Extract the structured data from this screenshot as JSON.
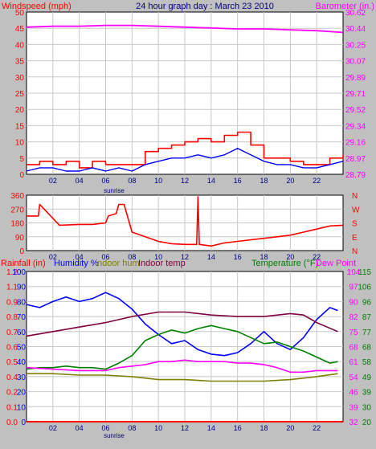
{
  "header": {
    "left_label": "Windspeed (mph)",
    "title": "24 hour graph day : March 23 2010",
    "right_label": "Barometer (in.)"
  },
  "colors": {
    "background": "#c0c0c0",
    "plot_bg": "#ffffff",
    "grid": "#c8c8c8",
    "wind": "#ff0000",
    "wind_avg": "#0000ff",
    "barometer": "#ff00ff",
    "direction": "#ff0000",
    "humidity": "#0000ff",
    "indoor_hum": "#808000",
    "indoor_temp": "#800040",
    "temperature": "#008000",
    "dew_point": "#ff00ff",
    "rain": "#ff0000",
    "tick_text": "#000080"
  },
  "bottom_labels": {
    "rain": "Rainfall (in)",
    "humidity": "Humidity %",
    "indoor_hum": "Indoor hum",
    "indoor_temp": "Indoor temp",
    "temperature": "Temperature (°F)",
    "dew_point": "Dew Point"
  },
  "sunrise_label": "sunrise",
  "chart_data": [
    {
      "id": "wind_baro",
      "type": "line",
      "x_ticks": [
        "02",
        "04",
        "06",
        "08",
        "10",
        "12",
        "14",
        "16",
        "18",
        "20",
        "22"
      ],
      "left_ticks": [
        "0",
        "5",
        "10",
        "15",
        "20",
        "25",
        "30",
        "35",
        "40",
        "45",
        "50"
      ],
      "right_ticks": [
        "28.79",
        "28.97",
        "29.16",
        "29.34",
        "29.52",
        "29.71",
        "29.89",
        "30.07",
        "30.25",
        "30.44",
        "30.62"
      ],
      "ylim": [
        0,
        50
      ],
      "ylim_right": [
        28.79,
        30.62
      ],
      "series": [
        {
          "name": "Windspeed (mph)",
          "x": [
            0,
            1,
            2,
            3,
            4,
            5,
            6,
            7,
            8,
            9,
            10,
            11,
            12,
            13,
            14,
            15,
            16,
            17,
            18,
            19,
            20,
            21,
            22,
            23,
            24
          ],
          "values": [
            3,
            4,
            3,
            4,
            2,
            4,
            3,
            3,
            3,
            7,
            8,
            9,
            10,
            11,
            10,
            12,
            13,
            9,
            5,
            5,
            4,
            3,
            3,
            5,
            6
          ]
        },
        {
          "name": "Wind average",
          "x": [
            0,
            1,
            2,
            3,
            4,
            5,
            6,
            7,
            8,
            9,
            10,
            11,
            12,
            13,
            14,
            15,
            16,
            17,
            18,
            19,
            20,
            21,
            22,
            23,
            24
          ],
          "values": [
            1,
            2,
            2,
            1,
            1,
            2,
            1,
            2,
            1,
            3,
            4,
            5,
            5,
            6,
            5,
            6,
            8,
            6,
            4,
            3,
            3,
            2,
            2,
            3,
            4
          ]
        },
        {
          "name": "Barometer (in.)",
          "x": [
            0,
            2,
            4,
            6,
            8,
            10,
            12,
            14,
            16,
            18,
            20,
            22,
            24
          ],
          "values": [
            30.45,
            30.46,
            30.46,
            30.47,
            30.47,
            30.46,
            30.45,
            30.44,
            30.43,
            30.43,
            30.42,
            30.41,
            30.39
          ]
        }
      ]
    },
    {
      "id": "direction",
      "type": "line",
      "x_ticks": [
        "02",
        "04",
        "06",
        "08",
        "10",
        "12",
        "14",
        "16",
        "18",
        "20",
        "22"
      ],
      "left_ticks": [
        "0",
        "90",
        "180",
        "270",
        "360"
      ],
      "right_ticks": [
        "N",
        "E",
        "S",
        "W",
        "N"
      ],
      "ylim": [
        0,
        360
      ],
      "series": [
        {
          "name": "Wind direction",
          "x": [
            0,
            0.9,
            1.0,
            2.5,
            4,
            5,
            6,
            6.2,
            6.8,
            7.0,
            7.4,
            8.0,
            9,
            10,
            11,
            12,
            12.9,
            13,
            13.1,
            14,
            15,
            16,
            17,
            18,
            19,
            20,
            21,
            22,
            23,
            24
          ],
          "values": [
            225,
            225,
            300,
            165,
            170,
            170,
            180,
            225,
            240,
            300,
            300,
            120,
            90,
            60,
            45,
            40,
            40,
            350,
            40,
            30,
            50,
            60,
            70,
            80,
            90,
            100,
            120,
            140,
            160,
            165
          ]
        }
      ]
    },
    {
      "id": "temp_hum",
      "type": "line",
      "x_ticks": [
        "02",
        "04",
        "06",
        "08",
        "10",
        "12",
        "14",
        "16",
        "18",
        "20",
        "22"
      ],
      "left_ticks": [
        "0",
        "10",
        "20",
        "30",
        "40",
        "50",
        "60",
        "70",
        "80",
        "90",
        "100"
      ],
      "rain_ticks": [
        "0.0",
        "0.1",
        "0.2",
        "0.4",
        "0.5",
        "0.6",
        "0.7",
        "0.8",
        "0.9",
        "1.1",
        "1.2"
      ],
      "temp_ticks": [
        "20",
        "30",
        "39",
        "49",
        "58",
        "68",
        "77",
        "87",
        "96",
        "106",
        "115"
      ],
      "dew_ticks": [
        "32",
        "39",
        "46",
        "54",
        "61",
        "68",
        "75",
        "82",
        "90",
        "97",
        "104"
      ],
      "ylim": [
        0,
        100
      ],
      "series": [
        {
          "name": "Humidity %",
          "x": [
            0,
            1,
            2,
            3,
            4,
            5,
            6,
            7,
            8,
            9,
            10,
            11,
            12,
            13,
            14,
            15,
            16,
            17,
            18,
            19,
            20,
            21,
            22,
            23,
            23.6
          ],
          "values": [
            78,
            76,
            80,
            83,
            80,
            82,
            86,
            82,
            75,
            65,
            58,
            52,
            54,
            48,
            45,
            44,
            46,
            52,
            60,
            52,
            48,
            56,
            68,
            76,
            74
          ]
        },
        {
          "name": "Indoor hum",
          "x": [
            0,
            2,
            4,
            6,
            8,
            10,
            12,
            14,
            16,
            18,
            20,
            22,
            23.6
          ],
          "values": [
            32,
            32,
            31,
            31,
            30,
            28,
            28,
            27,
            27,
            27,
            28,
            30,
            32
          ]
        },
        {
          "name": "Indoor temp",
          "x": [
            0,
            2,
            4,
            6,
            8,
            10,
            12,
            14,
            16,
            18,
            20,
            21,
            22,
            23.6
          ],
          "values": [
            57,
            60,
            63,
            66,
            70,
            73,
            73,
            71,
            70,
            70,
            72,
            71,
            66,
            60
          ]
        },
        {
          "name": "Temperature (°F)",
          "x": [
            0,
            1,
            2,
            3,
            4,
            5,
            6,
            7,
            8,
            9,
            10,
            11,
            12,
            13,
            14,
            15,
            16,
            17,
            18,
            19,
            20,
            21,
            22,
            23,
            23.6
          ],
          "values": [
            35,
            36,
            36,
            37,
            36,
            36,
            35,
            39,
            44,
            54,
            58,
            61,
            59,
            62,
            64,
            62,
            60,
            56,
            52,
            53,
            50,
            47,
            43,
            39,
            40
          ]
        },
        {
          "name": "Dew Point",
          "x": [
            0,
            2,
            4,
            6,
            7,
            8,
            9,
            10,
            11,
            12,
            13,
            14,
            15,
            16,
            17,
            18,
            19,
            20,
            21,
            22,
            23,
            23.6
          ],
          "values": [
            36,
            35,
            34,
            34,
            36,
            37,
            38,
            40,
            40,
            41,
            40,
            40,
            40,
            39,
            39,
            38,
            36,
            33,
            33,
            34,
            34,
            34
          ]
        },
        {
          "name": "Rainfall (in)",
          "x": [
            0,
            24
          ],
          "values": [
            0.0,
            0.0
          ]
        }
      ]
    }
  ]
}
